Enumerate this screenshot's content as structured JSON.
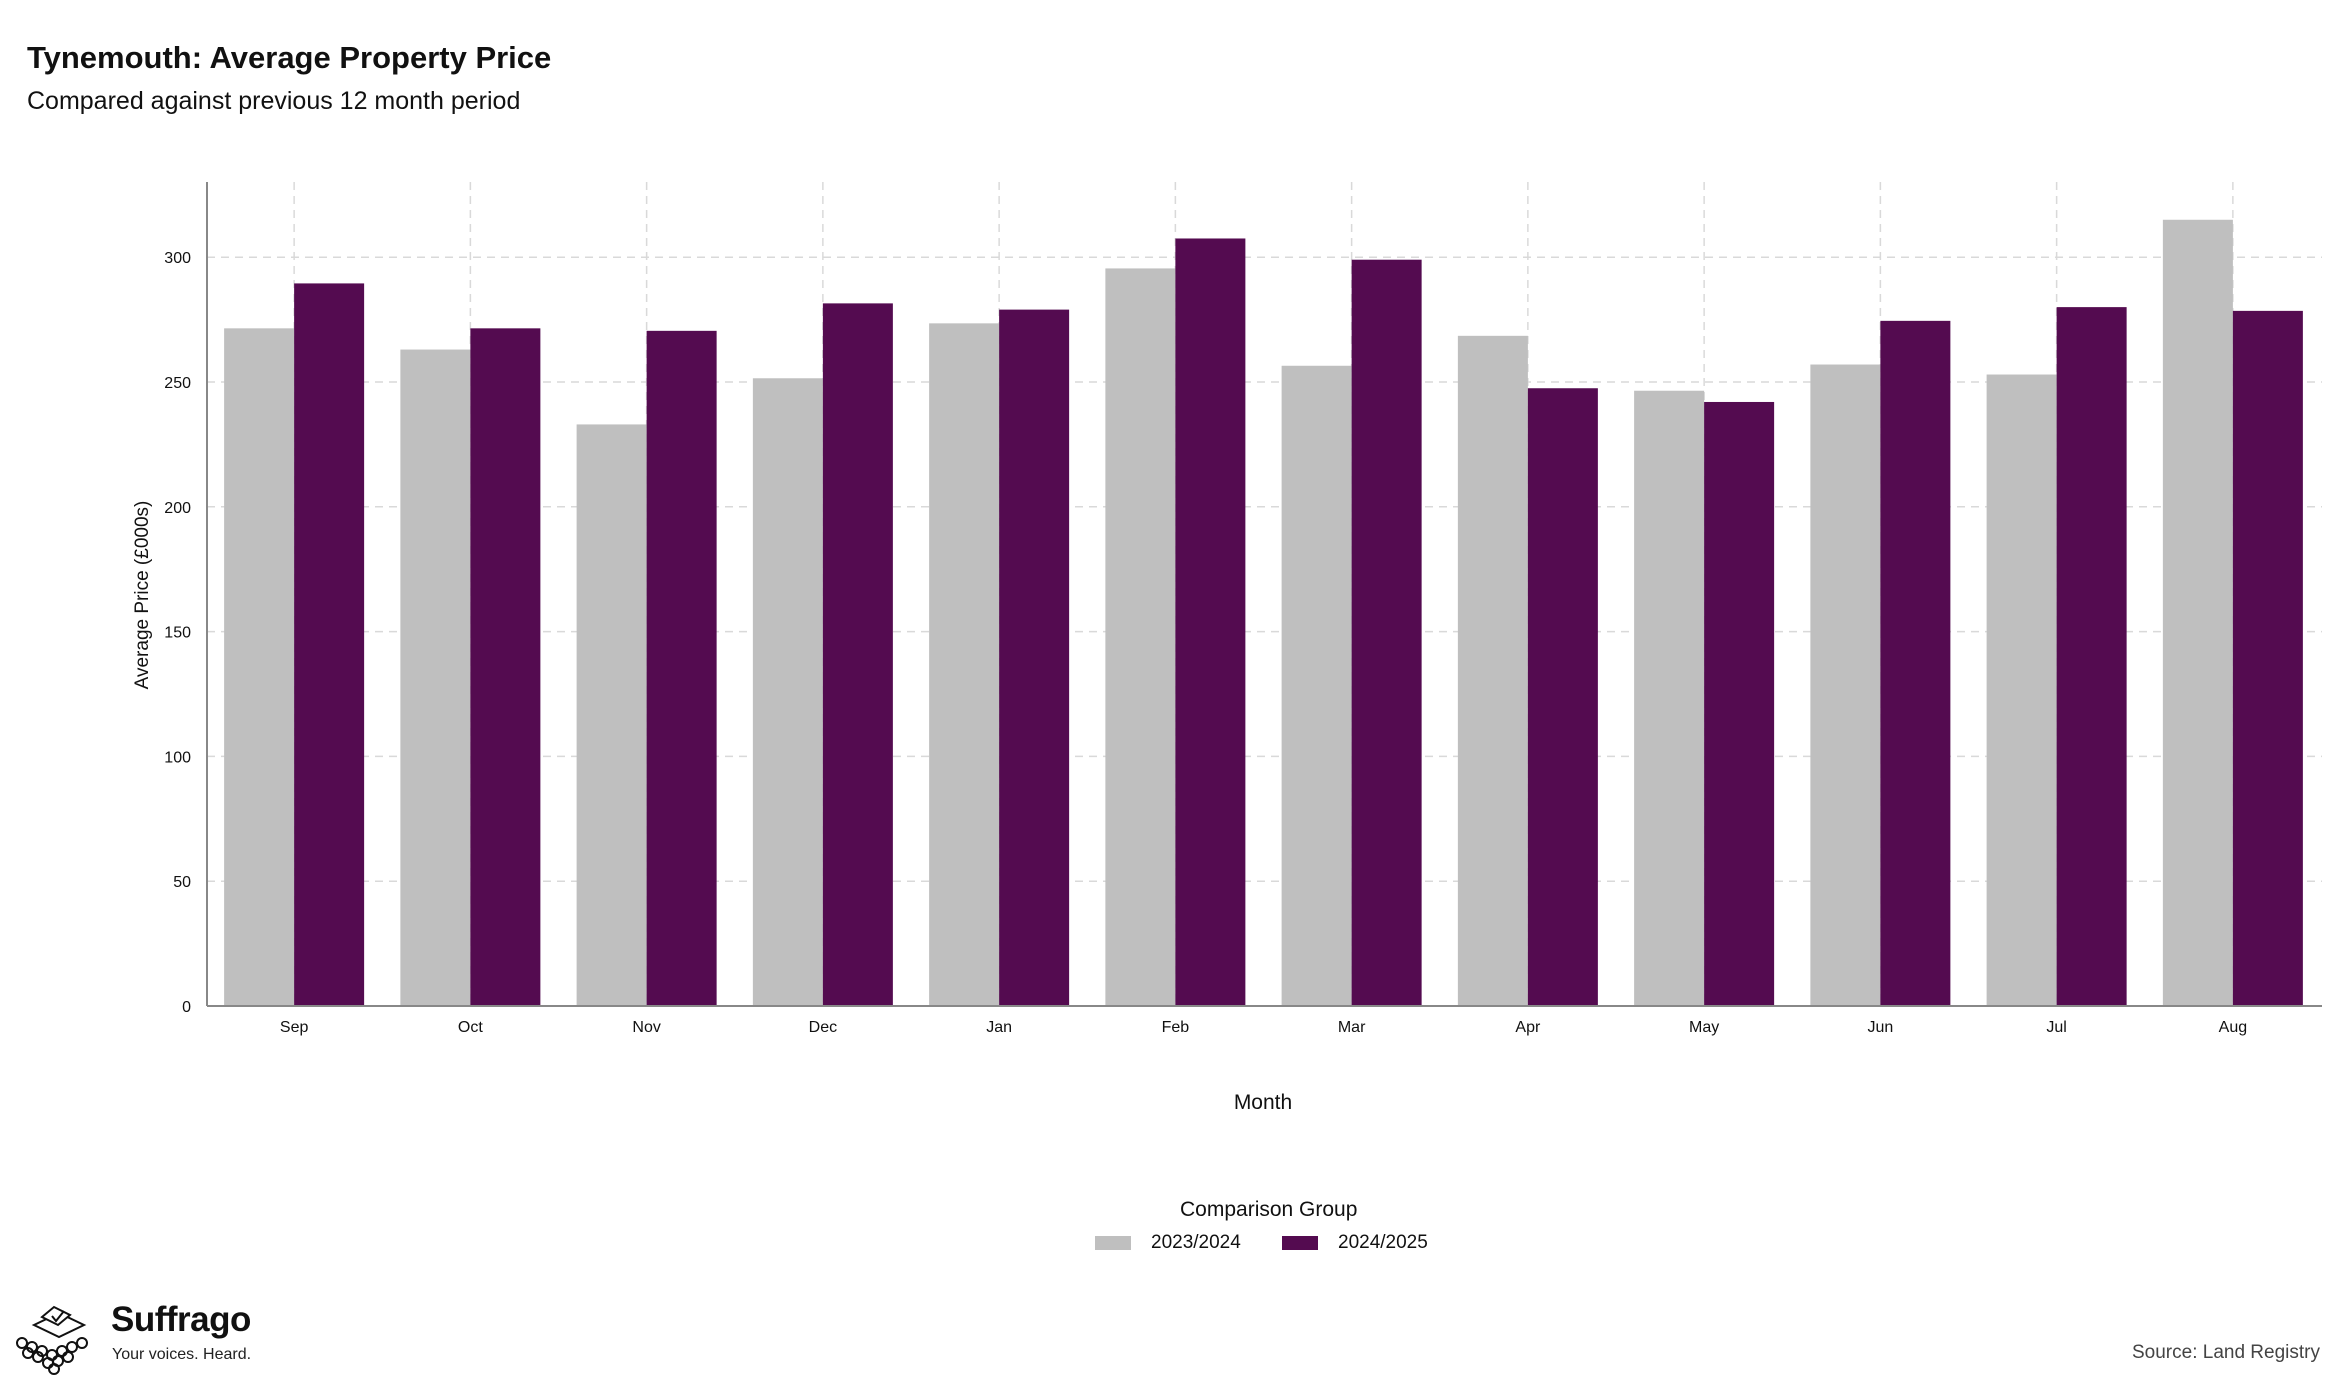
{
  "header": {
    "title": "Tynemouth: Average Property Price",
    "subtitle": "Compared against previous 12 month period"
  },
  "chart_data": {
    "type": "bar",
    "title": "Tynemouth: Average Property Price",
    "subtitle": "Compared against previous 12 month period",
    "xlabel": "Month",
    "ylabel": "Average Price (£000s)",
    "ylim": [
      0,
      330
    ],
    "yticks": [
      0,
      50,
      100,
      150,
      200,
      250,
      300
    ],
    "grid": true,
    "legend_position": "bottom",
    "legend_title": "Comparison Group",
    "categories": [
      "Sep",
      "Oct",
      "Nov",
      "Dec",
      "Jan",
      "Feb",
      "Mar",
      "Apr",
      "May",
      "Jun",
      "Jul",
      "Aug"
    ],
    "series": [
      {
        "name": "2023/2024",
        "color": "#bfbfbf",
        "values": [
          271.5,
          263,
          233,
          251.5,
          273.5,
          295.5,
          256.5,
          268.5,
          246.5,
          257,
          253,
          315
        ]
      },
      {
        "name": "2024/2025",
        "color": "#540b50",
        "values": [
          289.5,
          271.5,
          270.5,
          281.5,
          279,
          307.5,
          299,
          247.5,
          242,
          274.5,
          280,
          278.5
        ]
      }
    ]
  },
  "brand": {
    "name": "Suffrago",
    "tagline": "Your voices. Heard.",
    "icon": "ballot-box-icon"
  },
  "footer": {
    "source": "Source: Land Registry"
  }
}
